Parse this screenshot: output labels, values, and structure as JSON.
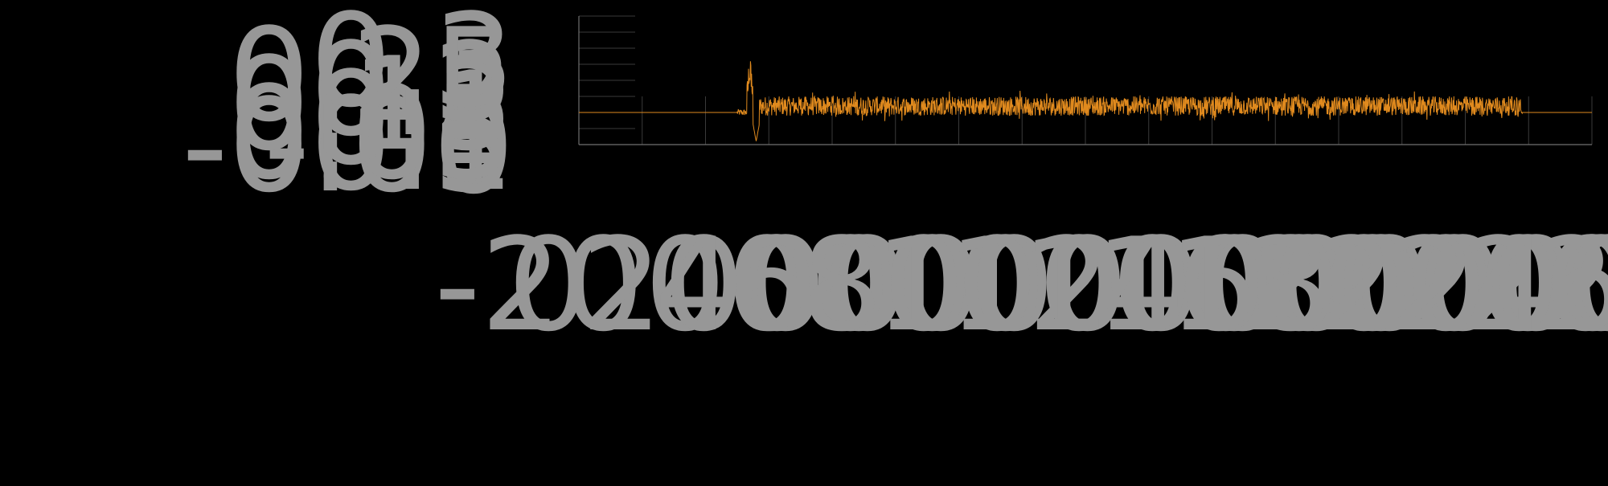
{
  "chart_data": {
    "type": "line",
    "title": "",
    "xlabel": "",
    "ylabel": "",
    "x_ticks": [
      "-2000",
      "0",
      "2000",
      "4000",
      "6000",
      "8000",
      "10000",
      "12000",
      "14000",
      "16000",
      "18000",
      "20000",
      "22000",
      "24000",
      "26000",
      "28000",
      "30000"
    ],
    "y_ticks": [
      "-0.1",
      "-0.05",
      "0",
      "0.05",
      "0.1",
      "0.15",
      "0.2",
      "0.25",
      "0.3"
    ],
    "xlim": [
      -2000,
      30000
    ],
    "ylim": [
      -0.1,
      0.3
    ],
    "grid": true,
    "series": [
      {
        "color": "#E08A1E",
        "baseline": 0,
        "segments": [
          {
            "x0": -2000,
            "x1": 3000,
            "kind": "flat",
            "value": 0
          },
          {
            "x0": 3000,
            "x1": 5000,
            "kind": "spike",
            "max": 0.18,
            "min": -0.09
          },
          {
            "x0": 5000,
            "x1": 27800,
            "kind": "noise",
            "center": 0.02,
            "amplitude": 0.03
          },
          {
            "x0": 27800,
            "x1": 30000,
            "kind": "flat",
            "value": 0
          }
        ]
      }
    ]
  }
}
